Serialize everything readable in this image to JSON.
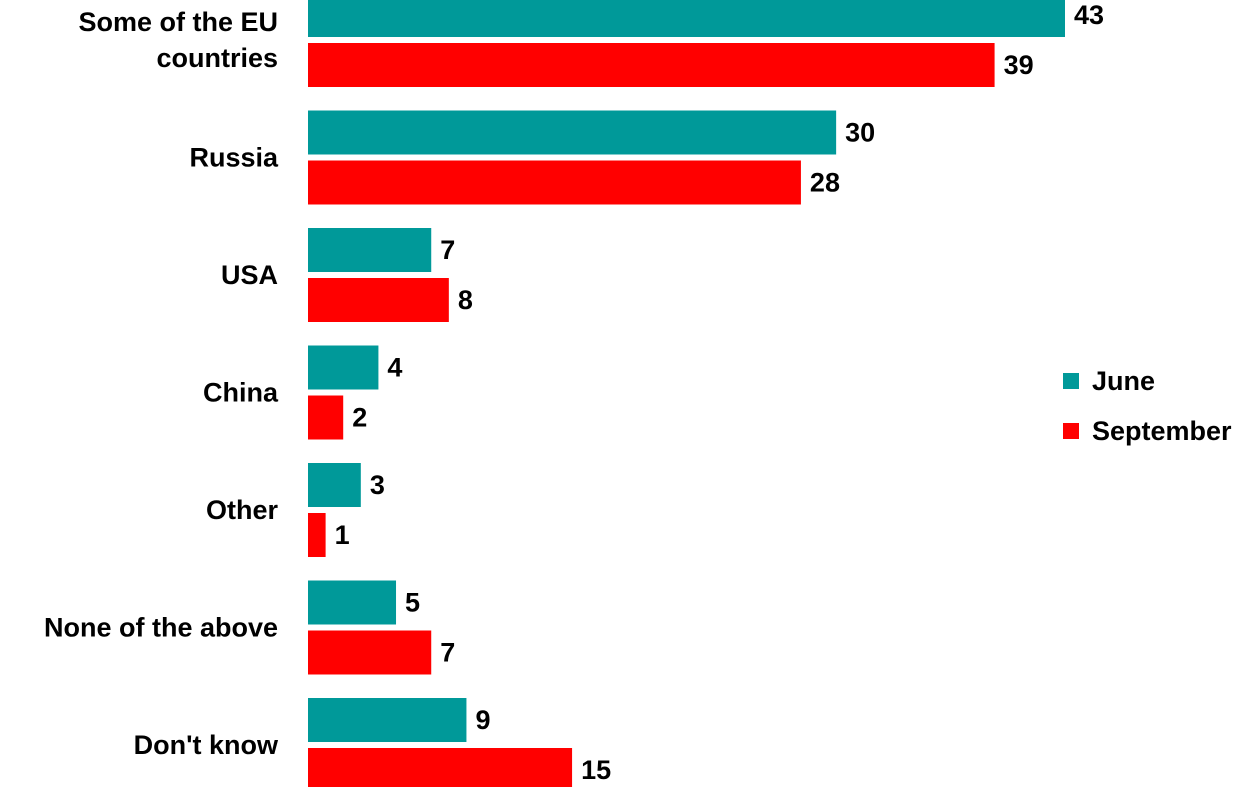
{
  "chart_data": {
    "type": "bar",
    "orientation": "horizontal",
    "categories": [
      [
        "Some of the EU",
        "countries"
      ],
      [
        "Russia"
      ],
      [
        "USA"
      ],
      [
        "China"
      ],
      [
        "Other"
      ],
      [
        "None of the above"
      ],
      [
        "Don't know"
      ]
    ],
    "series": [
      {
        "name": "June",
        "color": "#009999",
        "values": [
          43,
          30,
          7,
          4,
          3,
          5,
          9
        ]
      },
      {
        "name": "September",
        "color": "#ff0000",
        "values": [
          39,
          28,
          8,
          2,
          1,
          7,
          15
        ]
      }
    ],
    "xlim": [
      0,
      43
    ],
    "grid": false,
    "legend_position": "right"
  }
}
